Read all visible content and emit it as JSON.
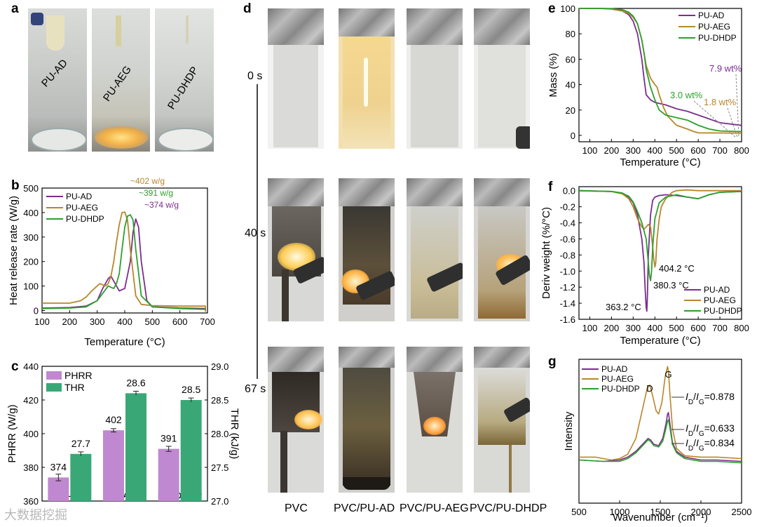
{
  "figure": {
    "panel_labels": [
      "a",
      "b",
      "c",
      "d",
      "e",
      "f",
      "g"
    ],
    "watermark": "大数据挖掘",
    "colors": {
      "ad": "#7b2d8e",
      "aeg": "#b8862b",
      "dhdp": "#2ca02c",
      "phrr": "#c088d0",
      "thr": "#3aa876"
    }
  },
  "photo_a": {
    "labels": [
      "PU-AD",
      "PU-AEG",
      "PU-DHDP"
    ]
  },
  "photo_d": {
    "times": [
      "0 s",
      "40 s",
      "67 s"
    ],
    "columns": [
      "PVC",
      "PVC/PU-AD",
      "PVC/PU-AEG",
      "PVC/PU-DHDP"
    ]
  },
  "chart_data": [
    {
      "panel": "b",
      "type": "line",
      "xlabel": "Temperature (°C)",
      "ylabel": "Heat release rate (W/g)",
      "xlim": [
        100,
        700
      ],
      "ylim": [
        -10,
        500
      ],
      "xticks": [
        "100",
        "200",
        "300",
        "400",
        "500",
        "600",
        "700"
      ],
      "yticks": [
        "0",
        "100",
        "200",
        "300",
        "400",
        "500"
      ],
      "legend": [
        "PU-AD",
        "PU-AEG",
        "PU-DHDP"
      ],
      "series": [
        {
          "name": "PU-AD",
          "x": [
            100,
            200,
            260,
            300,
            320,
            340,
            350,
            360,
            380,
            400,
            420,
            430,
            440,
            450,
            460,
            480,
            500,
            600,
            695
          ],
          "y": [
            10,
            12,
            18,
            40,
            90,
            130,
            140,
            120,
            80,
            90,
            200,
            320,
            374,
            340,
            200,
            40,
            15,
            10,
            8
          ]
        },
        {
          "name": "PU-AEG",
          "x": [
            100,
            200,
            240,
            260,
            280,
            300,
            310,
            320,
            330,
            340,
            350,
            360,
            370,
            380,
            390,
            400,
            410,
            420,
            440,
            460,
            500,
            600,
            692,
            693
          ],
          "y": [
            30,
            30,
            40,
            55,
            80,
            100,
            110,
            105,
            100,
            110,
            140,
            200,
            280,
            350,
            400,
            402,
            370,
            250,
            60,
            25,
            20,
            18,
            18,
            -5
          ]
        },
        {
          "name": "PU-DHDP",
          "x": [
            100,
            200,
            260,
            300,
            320,
            340,
            350,
            360,
            370,
            380,
            390,
            400,
            410,
            420,
            430,
            440,
            460,
            500,
            600,
            695
          ],
          "y": [
            8,
            10,
            15,
            40,
            70,
            100,
            95,
            90,
            110,
            150,
            250,
            340,
            385,
            391,
            370,
            250,
            60,
            15,
            8,
            5
          ]
        }
      ],
      "annotations": [
        "~402 w/g",
        "~391 w/g",
        "~374 w/g"
      ]
    },
    {
      "panel": "c",
      "type": "bar",
      "categories": [
        "PU-AD",
        "PU-AEG",
        "PU-DHDP"
      ],
      "series": [
        {
          "name": "PHRR",
          "axis": "left",
          "values": [
            374,
            402,
            391
          ],
          "labels": [
            "374",
            "402",
            "391"
          ],
          "errors": [
            2,
            1,
            1.5
          ]
        },
        {
          "name": "THR",
          "axis": "right",
          "values": [
            27.7,
            28.6,
            28.5
          ],
          "labels": [
            "27.7",
            "28.6",
            "28.5"
          ],
          "errors": [
            0.03,
            0.03,
            0.03
          ]
        }
      ],
      "ylabel": "PHRR (W/g)",
      "y2label": "THR (kJ/g)",
      "ylim": [
        360,
        440
      ],
      "y2lim": [
        27.0,
        29.0
      ],
      "yticks": [
        "360",
        "380",
        "400",
        "420",
        "440"
      ],
      "y2ticks": [
        "27.0",
        "27.5",
        "28.0",
        "28.5",
        "29.0"
      ],
      "legend": [
        "PHRR",
        "THR"
      ]
    },
    {
      "panel": "e",
      "type": "line",
      "xlabel": "Temperature (°C)",
      "ylabel": "Mass (%)",
      "xlim": [
        50,
        800
      ],
      "ylim": [
        -5,
        100
      ],
      "xticks": [
        "100",
        "200",
        "300",
        "400",
        "500",
        "600",
        "700",
        "800"
      ],
      "yticks": [
        "0",
        "20",
        "40",
        "60",
        "80",
        "100"
      ],
      "legend": [
        "PU-AD",
        "PU-AEG",
        "PU-DHDP"
      ],
      "series": [
        {
          "name": "PU-AD",
          "x": [
            50,
            150,
            200,
            250,
            280,
            300,
            320,
            340,
            350,
            360,
            380,
            400,
            450,
            500,
            550,
            600,
            650,
            700,
            800
          ],
          "y": [
            100,
            100,
            99.5,
            98,
            95,
            90,
            80,
            60,
            45,
            32,
            28,
            26,
            24,
            21,
            19,
            16,
            13,
            10,
            7.9
          ]
        },
        {
          "name": "PU-AEG",
          "x": [
            50,
            150,
            200,
            250,
            280,
            300,
            320,
            340,
            350,
            360,
            380,
            400,
            410,
            420,
            440,
            460,
            500,
            550,
            580,
            600,
            700,
            800
          ],
          "y": [
            100,
            100,
            99.5,
            98,
            96,
            93,
            88,
            75,
            65,
            55,
            45,
            40,
            38,
            32,
            22,
            15,
            8,
            5,
            3,
            2,
            1.9,
            1.8
          ]
        },
        {
          "name": "PU-DHDP",
          "x": [
            50,
            150,
            200,
            250,
            280,
            300,
            320,
            340,
            350,
            360,
            380,
            400,
            420,
            450,
            500,
            550,
            600,
            650,
            700,
            800
          ],
          "y": [
            100,
            100,
            99.8,
            99,
            97,
            94,
            88,
            75,
            65,
            52,
            38,
            28,
            20,
            16,
            14,
            12,
            8,
            5,
            3.5,
            3.0
          ]
        }
      ],
      "annotations": [
        "7.9 wt%",
        "3.0 wt%",
        "1.8 wt%"
      ]
    },
    {
      "panel": "f",
      "type": "line",
      "xlabel": "Temperature (°C)",
      "ylabel": "Deriv weight (%/°C)",
      "xlim": [
        50,
        800
      ],
      "ylim": [
        -1.6,
        0.05
      ],
      "xticks": [
        "100",
        "200",
        "300",
        "400",
        "500",
        "600",
        "700",
        "800"
      ],
      "yticks": [
        "0.0",
        "-0.2",
        "-0.4",
        "-0.6",
        "-0.8",
        "-1.0",
        "-1.2",
        "-1.4",
        "-1.6"
      ],
      "legend": [
        "PU-AD",
        "PU-AEG",
        "PU-DHDP"
      ],
      "series": [
        {
          "name": "PU-AD",
          "x": [
            50,
            200,
            250,
            280,
            300,
            320,
            340,
            350,
            355,
            360,
            363,
            366,
            370,
            380,
            390,
            400,
            420,
            450,
            500,
            550,
            600,
            650,
            700,
            800
          ],
          "y": [
            0,
            -0.01,
            -0.03,
            -0.08,
            -0.15,
            -0.3,
            -0.6,
            -0.9,
            -1.2,
            -1.45,
            -1.5,
            -1.3,
            -0.8,
            -0.3,
            -0.12,
            -0.08,
            -0.06,
            -0.05,
            -0.06,
            -0.08,
            -0.1,
            -0.05,
            -0.02,
            -0.01
          ]
        },
        {
          "name": "PU-AEG",
          "x": [
            50,
            200,
            250,
            280,
            300,
            320,
            340,
            350,
            360,
            370,
            380,
            390,
            395,
            400,
            404,
            410,
            420,
            430,
            450,
            480,
            500,
            550,
            600,
            700,
            800
          ],
          "y": [
            0,
            -0.01,
            -0.04,
            -0.1,
            -0.2,
            -0.35,
            -0.45,
            -0.48,
            -0.45,
            -0.42,
            -0.45,
            -0.7,
            -0.85,
            -0.95,
            -0.9,
            -0.6,
            -0.35,
            -0.2,
            -0.1,
            -0.02,
            0,
            0.01,
            0,
            0,
            0
          ]
        },
        {
          "name": "PU-DHDP",
          "x": [
            50,
            200,
            250,
            280,
            300,
            320,
            340,
            350,
            360,
            370,
            375,
            380,
            385,
            390,
            400,
            420,
            450,
            500,
            550,
            600,
            650,
            700,
            800
          ],
          "y": [
            0,
            -0.01,
            -0.03,
            -0.07,
            -0.14,
            -0.26,
            -0.4,
            -0.5,
            -0.6,
            -0.9,
            -1.05,
            -1.12,
            -1.0,
            -0.7,
            -0.35,
            -0.15,
            -0.08,
            -0.05,
            -0.08,
            -0.1,
            -0.05,
            -0.02,
            -0.01
          ]
        }
      ],
      "annotations": [
        "404.2 °C",
        "380.3 °C",
        "363.2 °C"
      ]
    },
    {
      "panel": "g",
      "type": "line",
      "xlabel": "Wavenumber (cm⁻¹)",
      "ylabel": "Intensity",
      "xlim": [
        500,
        2500
      ],
      "ylim": [
        0,
        1
      ],
      "xticks": [
        "500",
        "1000",
        "1500",
        "2000",
        "2500"
      ],
      "legend": [
        "PU-AD",
        "PU-AEG",
        "PU-DHDP"
      ],
      "peak_labels": [
        "D",
        "G"
      ],
      "ratio_values": [
        "0.878",
        "0.633",
        "0.834"
      ],
      "series": [
        {
          "name": "PU-AD",
          "x": [
            500,
            800,
            1000,
            1100,
            1200,
            1300,
            1350,
            1380,
            1420,
            1480,
            1530,
            1570,
            1590,
            1600,
            1620,
            1650,
            1700,
            1800,
            2000,
            2200,
            2500
          ],
          "y": [
            0.3,
            0.29,
            0.3,
            0.32,
            0.36,
            0.42,
            0.45,
            0.44,
            0.41,
            0.4,
            0.45,
            0.55,
            0.62,
            0.63,
            0.55,
            0.42,
            0.36,
            0.32,
            0.3,
            0.3,
            0.29
          ]
        },
        {
          "name": "PU-AEG",
          "x": [
            500,
            700,
            800,
            900,
            1000,
            1100,
            1200,
            1280,
            1340,
            1370,
            1400,
            1450,
            1480,
            1520,
            1560,
            1590,
            1600,
            1620,
            1650,
            1700,
            1800,
            2000,
            2200,
            2500
          ],
          "y": [
            0.32,
            0.32,
            0.31,
            0.3,
            0.31,
            0.34,
            0.45,
            0.65,
            0.8,
            0.82,
            0.76,
            0.64,
            0.62,
            0.7,
            0.88,
            0.95,
            0.92,
            0.75,
            0.52,
            0.38,
            0.33,
            0.32,
            0.32,
            0.31
          ]
        },
        {
          "name": "PU-DHDP",
          "x": [
            500,
            800,
            1000,
            1100,
            1200,
            1300,
            1350,
            1380,
            1420,
            1480,
            1530,
            1570,
            1590,
            1600,
            1620,
            1650,
            1700,
            1800,
            2000,
            2200,
            2500
          ],
          "y": [
            0.3,
            0.29,
            0.29,
            0.31,
            0.35,
            0.41,
            0.44,
            0.43,
            0.4,
            0.39,
            0.43,
            0.52,
            0.57,
            0.58,
            0.52,
            0.41,
            0.35,
            0.31,
            0.29,
            0.29,
            0.28
          ]
        }
      ]
    }
  ]
}
